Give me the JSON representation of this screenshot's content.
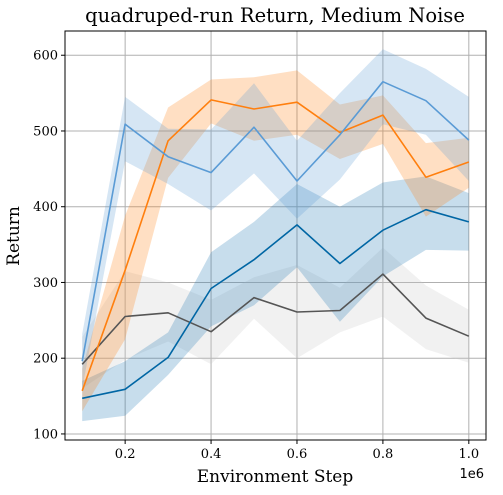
{
  "chart_data": {
    "type": "line",
    "title": "quadruped-run Return, Medium Noise",
    "xlabel": "Environment Step",
    "ylabel": "Return",
    "x_offset_label": "1e6",
    "x": [
      0.1,
      0.2,
      0.3,
      0.4,
      0.5,
      0.6,
      0.7,
      0.8,
      0.9,
      1.0
    ],
    "xlim": [
      0.06,
      1.04
    ],
    "ylim": [
      92,
      632
    ],
    "xticks": [
      0.2,
      0.4,
      0.6,
      0.8,
      1.0
    ],
    "xtick_labels": [
      "0.2",
      "0.4",
      "0.6",
      "0.8",
      "1.0"
    ],
    "yticks": [
      100,
      200,
      300,
      400,
      500,
      600
    ],
    "ytick_labels": [
      "100",
      "200",
      "300",
      "400",
      "500",
      "600"
    ],
    "grid": true,
    "series": [
      {
        "color": "#c8c8c8",
        "line_color": "#555555",
        "values": [
          192,
          255,
          260,
          235,
          280,
          261,
          263,
          311,
          253,
          229
        ],
        "lower": [
          160,
          198,
          222,
          192,
          252,
          200,
          234,
          255,
          212,
          194
        ],
        "upper": [
          228,
          315,
          300,
          277,
          307,
          323,
          293,
          346,
          296,
          264
        ]
      },
      {
        "color": "#1f77b4",
        "line_color": "#0066a4",
        "values": [
          147,
          159,
          201,
          292,
          330,
          376,
          325,
          369,
          396,
          380
        ],
        "lower": [
          117,
          124,
          178,
          242,
          270,
          320,
          248,
          308,
          343,
          342
        ],
        "upper": [
          170,
          196,
          234,
          340,
          380,
          430,
          400,
          432,
          440,
          418
        ]
      },
      {
        "color": "#ff7f0e",
        "line_color": "#ff7f0e",
        "values": [
          157,
          316,
          487,
          541,
          529,
          538,
          498,
          521,
          439,
          459
        ],
        "lower": [
          130,
          225,
          438,
          510,
          487,
          495,
          463,
          483,
          387,
          425
        ],
        "upper": [
          186,
          388,
          531,
          568,
          571,
          580,
          535,
          547,
          484,
          491
        ]
      },
      {
        "color": "#5a9bd5",
        "line_color": "#5a9bd5",
        "values": [
          196,
          509,
          466,
          445,
          505,
          434,
          495,
          565,
          540,
          488
        ],
        "lower": [
          160,
          460,
          430,
          395,
          444,
          384,
          436,
          509,
          495,
          434
        ],
        "upper": [
          232,
          545,
          503,
          502,
          563,
          487,
          550,
          608,
          582,
          545
        ]
      }
    ]
  }
}
